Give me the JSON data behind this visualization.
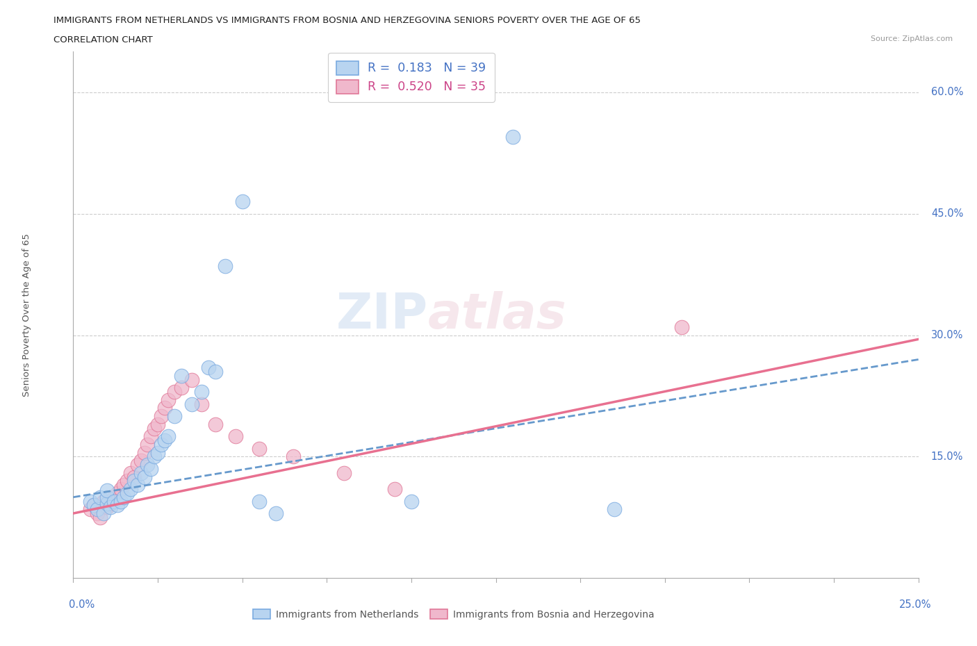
{
  "title_line1": "IMMIGRANTS FROM NETHERLANDS VS IMMIGRANTS FROM BOSNIA AND HERZEGOVINA SENIORS POVERTY OVER THE AGE OF 65",
  "title_line2": "CORRELATION CHART",
  "source": "Source: ZipAtlas.com",
  "ylabel": "Seniors Poverty Over the Age of 65",
  "ytick_labels": [
    "15.0%",
    "30.0%",
    "45.0%",
    "60.0%"
  ],
  "ytick_vals": [
    0.15,
    0.3,
    0.45,
    0.6
  ],
  "color_netherlands": "#b8d4f0",
  "color_netherlands_edge": "#7aaae0",
  "color_bosnia": "#f0b8cc",
  "color_bosnia_edge": "#e07898",
  "color_nl_line": "#6699cc",
  "color_ba_line": "#e87090",
  "watermark_zip": "ZIP",
  "watermark_atlas": "atlas",
  "xlim": [
    0.0,
    0.25
  ],
  "ylim": [
    0.0,
    0.65
  ],
  "nl_R": "0.183",
  "nl_N": "39",
  "ba_R": "0.520",
  "ba_N": "35",
  "netherlands_x": [
    0.005,
    0.006,
    0.007,
    0.008,
    0.009,
    0.01,
    0.01,
    0.01,
    0.011,
    0.012,
    0.013,
    0.014,
    0.015,
    0.016,
    0.017,
    0.018,
    0.019,
    0.02,
    0.021,
    0.022,
    0.023,
    0.024,
    0.025,
    0.026,
    0.027,
    0.028,
    0.03,
    0.032,
    0.035,
    0.038,
    0.04,
    0.042,
    0.045,
    0.05,
    0.055,
    0.06,
    0.1,
    0.13,
    0.16
  ],
  "netherlands_y": [
    0.095,
    0.09,
    0.085,
    0.1,
    0.08,
    0.092,
    0.1,
    0.108,
    0.088,
    0.095,
    0.09,
    0.095,
    0.1,
    0.105,
    0.11,
    0.12,
    0.115,
    0.13,
    0.125,
    0.14,
    0.135,
    0.15,
    0.155,
    0.165,
    0.17,
    0.175,
    0.2,
    0.25,
    0.215,
    0.23,
    0.26,
    0.255,
    0.385,
    0.465,
    0.095,
    0.08,
    0.095,
    0.545,
    0.085
  ],
  "bosnia_x": [
    0.005,
    0.006,
    0.007,
    0.008,
    0.009,
    0.01,
    0.011,
    0.012,
    0.013,
    0.014,
    0.015,
    0.016,
    0.017,
    0.018,
    0.019,
    0.02,
    0.021,
    0.022,
    0.023,
    0.024,
    0.025,
    0.026,
    0.027,
    0.028,
    0.03,
    0.032,
    0.035,
    0.038,
    0.042,
    0.048,
    0.055,
    0.065,
    0.08,
    0.095,
    0.18
  ],
  "bosnia_y": [
    0.085,
    0.09,
    0.08,
    0.075,
    0.095,
    0.088,
    0.092,
    0.1,
    0.105,
    0.11,
    0.115,
    0.12,
    0.13,
    0.125,
    0.14,
    0.145,
    0.155,
    0.165,
    0.175,
    0.185,
    0.19,
    0.2,
    0.21,
    0.22,
    0.23,
    0.235,
    0.245,
    0.215,
    0.19,
    0.175,
    0.16,
    0.15,
    0.13,
    0.11,
    0.31
  ]
}
